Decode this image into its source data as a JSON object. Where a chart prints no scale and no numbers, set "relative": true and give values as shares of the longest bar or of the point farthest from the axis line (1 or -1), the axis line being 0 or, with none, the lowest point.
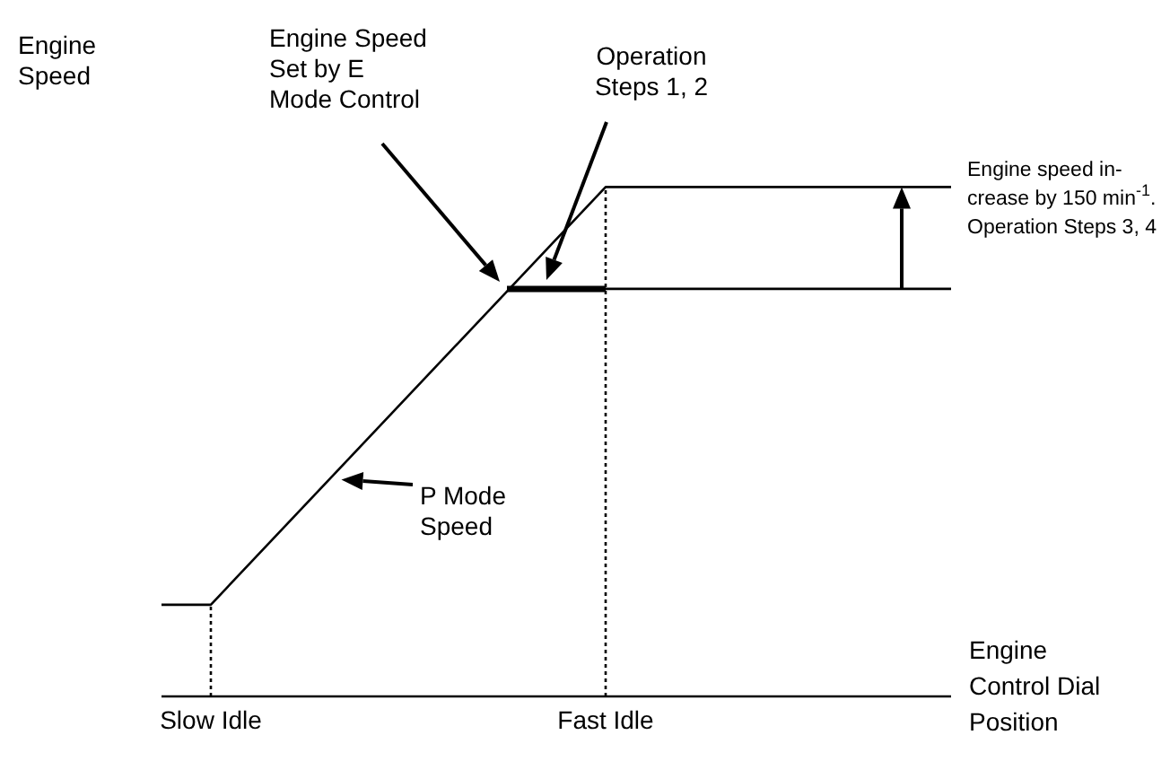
{
  "chart_data": {
    "type": "line",
    "relative": true,
    "xlabel": "Engine\nControl Dial\nPosition",
    "ylabel": "Engine\nSpeed",
    "marker": "none",
    "categories": [
      null,
      "Slow Idle",
      null,
      null,
      null,
      null,
      null,
      null,
      null,
      "Fast Idle",
      null,
      null,
      null,
      null,
      null,
      null,
      null
    ],
    "series": [
      {
        "color": "#000000",
        "values": [
          0.18,
          0.18,
          null,
          null,
          null,
          null,
          null,
          null,
          null,
          1,
          1,
          1,
          1,
          1,
          1,
          1,
          1
        ]
      },
      {
        "color": "#000000",
        "values": [
          null,
          null,
          null,
          null,
          null,
          null,
          null,
          0.8,
          null,
          0.8,
          null,
          null,
          null,
          null,
          null,
          null,
          null
        ]
      },
      {
        "color": "#000000",
        "values": [
          null,
          null,
          null,
          null,
          null,
          null,
          null,
          null,
          null,
          0.8,
          null,
          null,
          null,
          null,
          null,
          null,
          0.8
        ]
      }
    ],
    "ref_lines": [
      {
        "axis": "x",
        "value": "Slow Idle",
        "line_style": "dotted"
      },
      {
        "axis": "x",
        "value": "Fast Idle",
        "line_style": "dotted"
      }
    ],
    "annotations": [
      "Engine Speed\nSet by E\nMode Control",
      "Operation\nSteps 1, 2",
      "P Mode\nSpeed",
      "Engine speed in-\ncrease by 150 min$^{-1}$.\nOperation Steps 3, 4"
    ]
  }
}
